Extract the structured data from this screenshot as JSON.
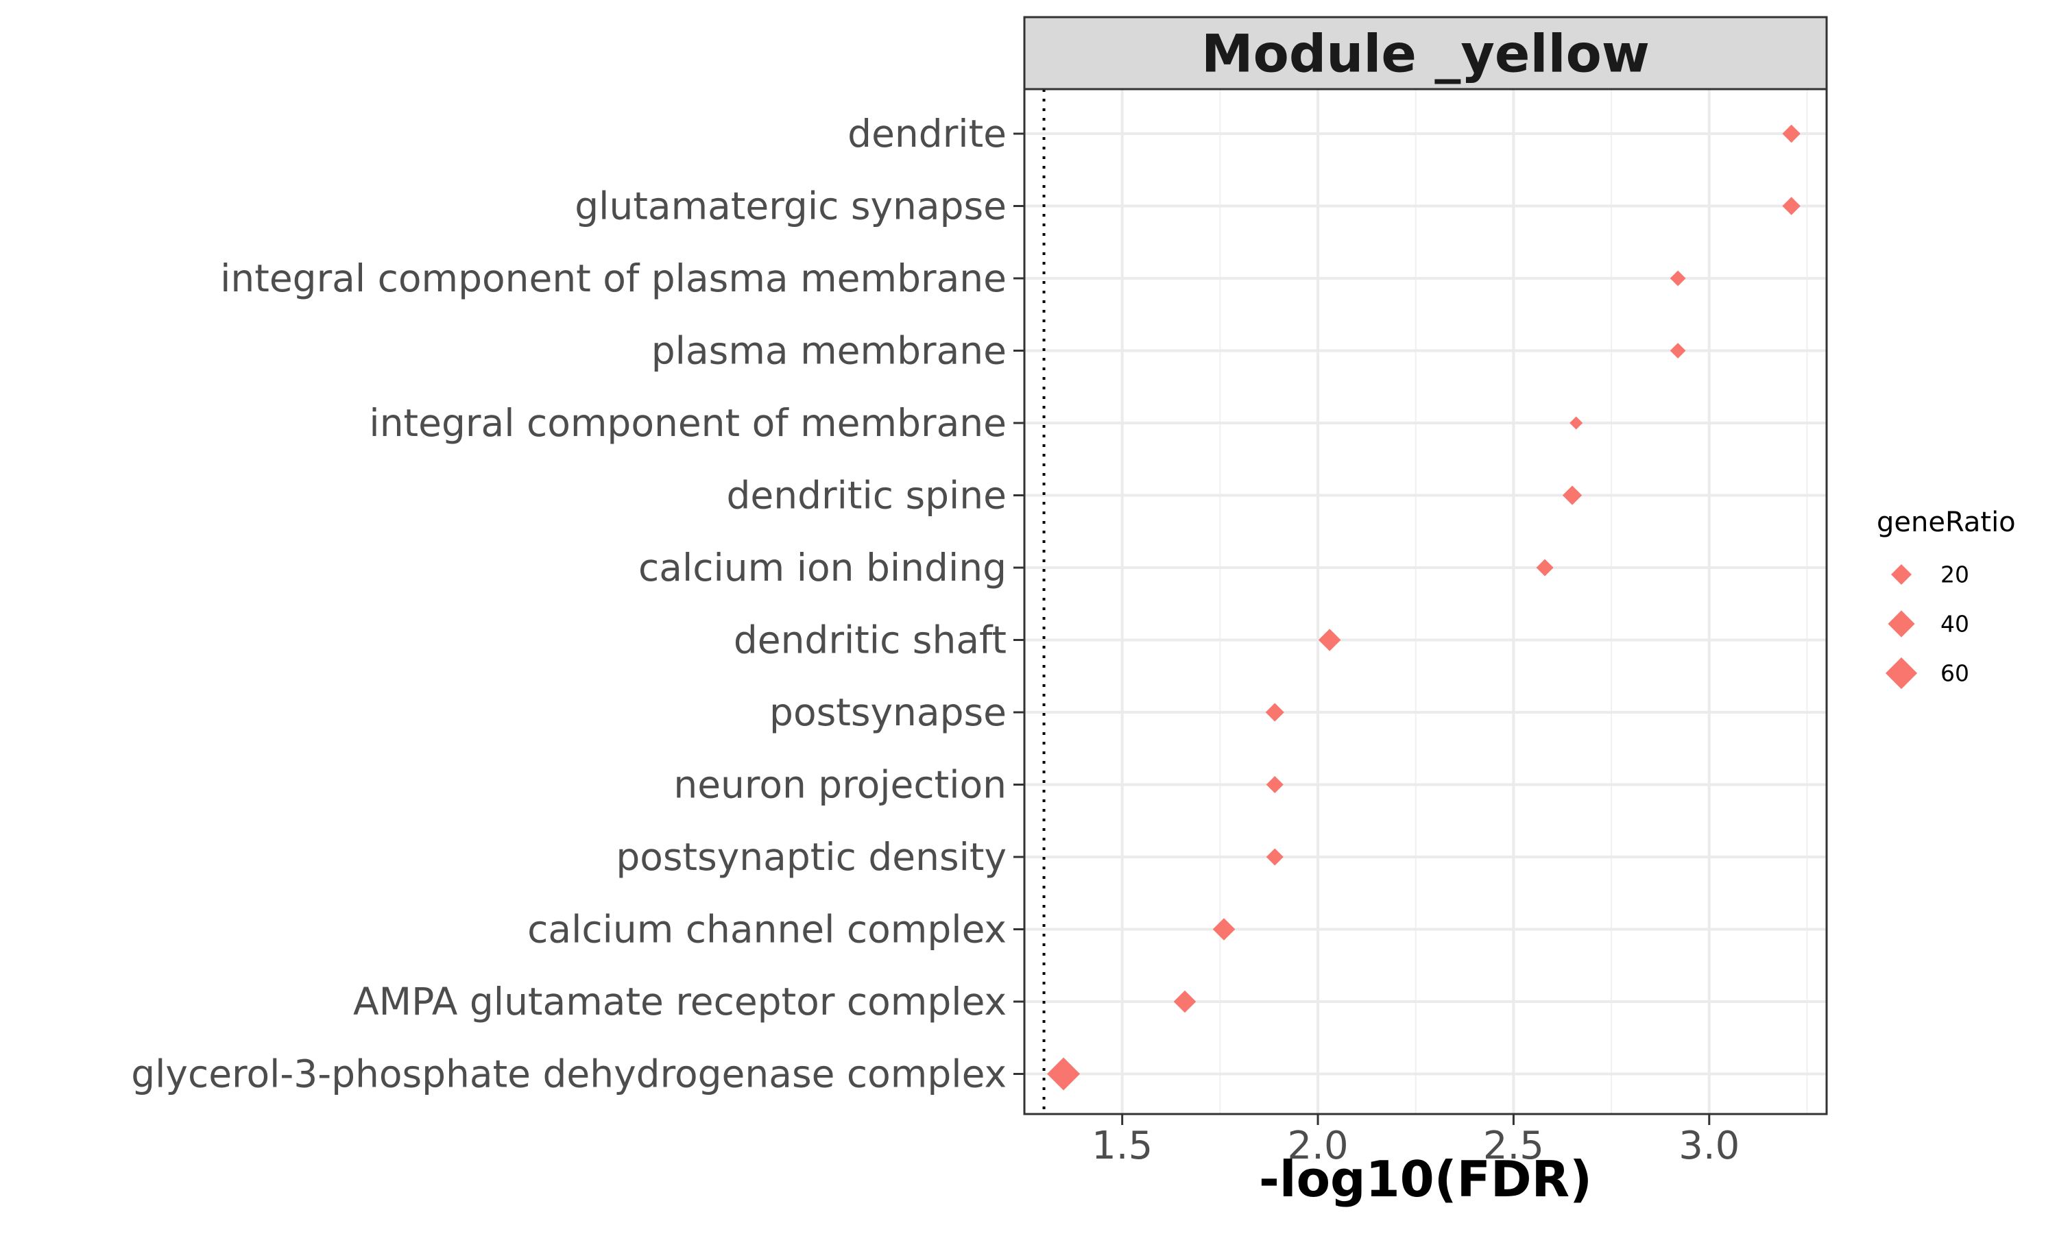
{
  "chart_data": {
    "type": "scatter",
    "title": "Module _yellow",
    "xlabel": "-log10(FDR)",
    "ylabel": "",
    "xlim": [
      1.25,
      3.3
    ],
    "xticks": [
      "1.5",
      "2.0",
      "2.5",
      "3.0"
    ],
    "reference_line": {
      "x": 1.3,
      "style": "dotted"
    },
    "marker": "diamond",
    "color": "#F8766D",
    "grid": true,
    "legend": {
      "title": "geneRatio",
      "placement": "right",
      "entries": [
        {
          "label": "20",
          "value": 20
        },
        {
          "label": "40",
          "value": 40
        },
        {
          "label": "60",
          "value": 60
        }
      ]
    },
    "points": [
      {
        "term": "dendrite",
        "x": 3.21,
        "geneRatio": 14
      },
      {
        "term": "glutamatergic synapse",
        "x": 3.21,
        "geneRatio": 14
      },
      {
        "term": "integral component of plasma membrane",
        "x": 2.92,
        "geneRatio": 9
      },
      {
        "term": "plasma membrane",
        "x": 2.92,
        "geneRatio": 9
      },
      {
        "term": "integral component of membrane",
        "x": 2.66,
        "geneRatio": 5
      },
      {
        "term": "dendritic spine",
        "x": 2.65,
        "geneRatio": 17
      },
      {
        "term": "calcium ion binding",
        "x": 2.58,
        "geneRatio": 12
      },
      {
        "term": "dendritic shaft",
        "x": 2.03,
        "geneRatio": 25
      },
      {
        "term": "postsynapse",
        "x": 1.89,
        "geneRatio": 15
      },
      {
        "term": "neuron projection",
        "x": 1.89,
        "geneRatio": 12
      },
      {
        "term": "postsynaptic density",
        "x": 1.89,
        "geneRatio": 12
      },
      {
        "term": "calcium channel complex",
        "x": 1.76,
        "geneRatio": 25
      },
      {
        "term": "AMPA glutamate receptor complex",
        "x": 1.66,
        "geneRatio": 25
      },
      {
        "term": "glycerol-3-phosphate dehydrogenase complex",
        "x": 1.35,
        "geneRatio": 66
      }
    ]
  }
}
